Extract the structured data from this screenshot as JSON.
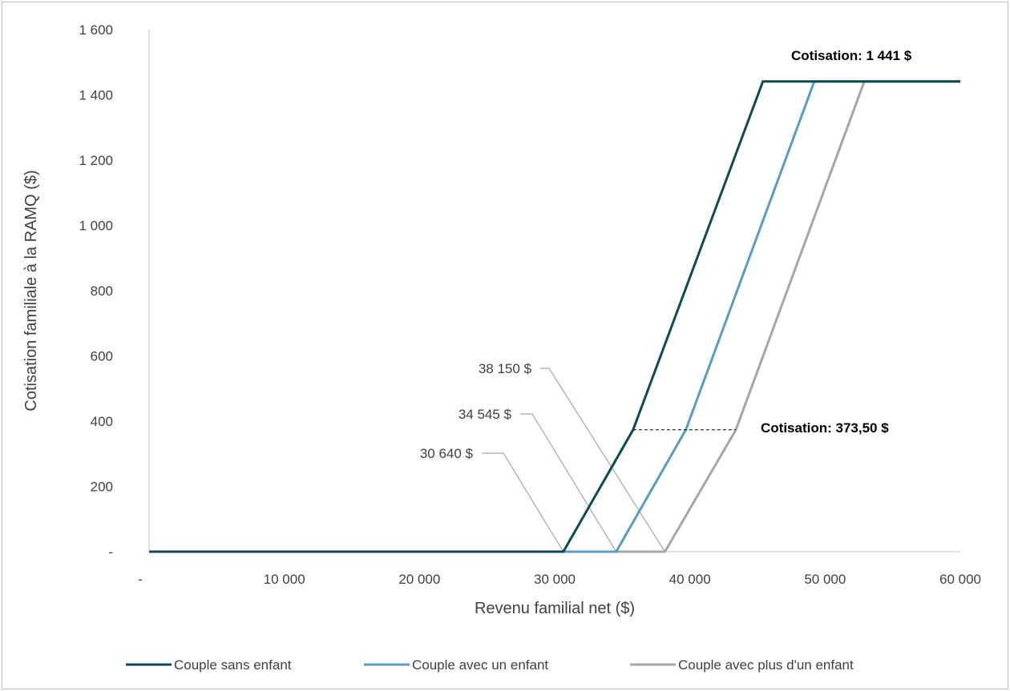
{
  "chart_data": {
    "type": "line",
    "xlabel": "Revenu familial net ($)",
    "ylabel": "Cotisation familiale à la RAMQ ($)",
    "xlim": [
      0,
      60000
    ],
    "ylim": [
      0,
      1600
    ],
    "x_ticks": [
      {
        "value": 0,
        "label": "-"
      },
      {
        "value": 10000,
        "label": "10 000"
      },
      {
        "value": 20000,
        "label": "20 000"
      },
      {
        "value": 30000,
        "label": "30 000"
      },
      {
        "value": 40000,
        "label": "40 000"
      },
      {
        "value": 50000,
        "label": "50 000"
      },
      {
        "value": 60000,
        "label": "60 000"
      }
    ],
    "y_ticks": [
      {
        "value": 0,
        "label": "-"
      },
      {
        "value": 200,
        "label": "200"
      },
      {
        "value": 400,
        "label": "400"
      },
      {
        "value": 600,
        "label": "600"
      },
      {
        "value": 800,
        "label": "800"
      },
      {
        "value": 1000,
        "label": "1 000"
      },
      {
        "value": 1200,
        "label": "1 200"
      },
      {
        "value": 1400,
        "label": "1 400"
      },
      {
        "value": 1600,
        "label": "1 600"
      }
    ],
    "grid": false,
    "legend_position": "bottom",
    "series": [
      {
        "name": "Couple sans enfant",
        "color": "#0d4a55",
        "points": [
          [
            0,
            0
          ],
          [
            30640,
            0
          ],
          [
            35800,
            373.5
          ],
          [
            45400,
            1441
          ],
          [
            60000,
            1441
          ]
        ]
      },
      {
        "name": "Couple avec un enfant",
        "color": "#5b9bc0",
        "points": [
          [
            0,
            0
          ],
          [
            34545,
            0
          ],
          [
            39700,
            373.5
          ],
          [
            49200,
            1441
          ],
          [
            60000,
            1441
          ]
        ]
      },
      {
        "name": "Couple avec plus d'un enfant",
        "color": "#a6a6a6",
        "points": [
          [
            0,
            0
          ],
          [
            38150,
            0
          ],
          [
            43400,
            373.5
          ],
          [
            52900,
            1441
          ],
          [
            60000,
            1441
          ]
        ]
      }
    ],
    "annotations": {
      "cotisation_max": "Cotisation: 1 441 $",
      "cotisation_mid": "Cotisation: 373,50 $",
      "threshold_1": "30 640 $",
      "threshold_2": "34 545 $",
      "threshold_3": "38 150 $"
    },
    "threshold_values": [
      30640,
      34545,
      38150
    ],
    "mid_value": 373.5,
    "max_value": 1441
  }
}
